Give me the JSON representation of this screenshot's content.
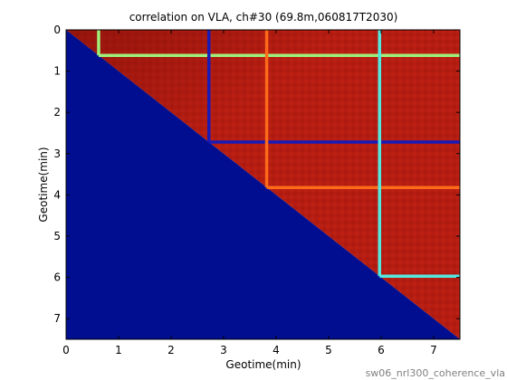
{
  "figure": {
    "footer": "sw06_nrl300_coherence_vla"
  },
  "chart_data": {
    "type": "heatmap",
    "title": "correlation on VLA, ch#30 (69.8m,060817T2030)",
    "xlabel": "Geotime(min)",
    "ylabel": "Geotime(min)",
    "xlim": [
      0,
      7.5
    ],
    "ylim": [
      0,
      7.5
    ],
    "y_reversed": true,
    "xticks": [
      "0",
      "1",
      "2",
      "3",
      "4",
      "5",
      "6",
      "7"
    ],
    "yticks": [
      "0",
      "1",
      "2",
      "3",
      "4",
      "5",
      "6",
      "7"
    ],
    "grid": false,
    "colors": {
      "upper_triangle": "#b71e12",
      "lower_triangle": "#000e8f",
      "frame": "#000000"
    },
    "lower_triangle_value": "masked (dark blue)",
    "upper_triangle_value": "high correlation (dark red)",
    "lines": [
      {
        "time": 0.62,
        "color": "#9ff07a"
      },
      {
        "time": 2.72,
        "color": "#1a1ab8"
      },
      {
        "time": 3.82,
        "color": "#ff6a1a"
      },
      {
        "time": 5.97,
        "color": "#52e8e0"
      }
    ]
  }
}
